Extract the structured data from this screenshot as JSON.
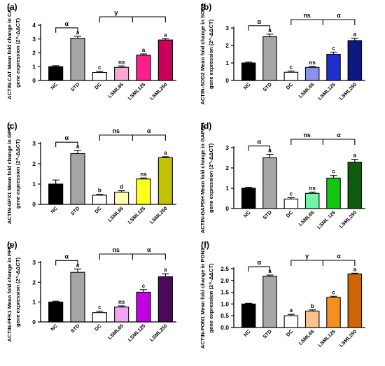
{
  "chart_data": [
    {
      "type": "bar",
      "panel_label": "(a)",
      "ylabel_lines": [
        "ACTIN-CAT Mean fold change in CAT",
        "gene expression (2^-ΔΔCT)"
      ],
      "ylim": [
        0,
        4
      ],
      "yticks": [
        0,
        1,
        2,
        3,
        4
      ],
      "categories": [
        "NC",
        "STD",
        "DC",
        "LSML65",
        "LSML125",
        "LSML250"
      ],
      "values": [
        1.0,
        3.05,
        0.58,
        0.95,
        1.83,
        2.93
      ],
      "errors": [
        0.07,
        0.15,
        0.07,
        0.1,
        0.09,
        0.09
      ],
      "colors": [
        "#000000",
        "#a6a6a6",
        "#ffffff",
        "#f7a8d0",
        "#ff1f8a",
        "#cc0058"
      ],
      "bar_labels": [
        "",
        "a",
        "c",
        "ns",
        "a",
        "a"
      ],
      "brackets": [
        {
          "from": 0,
          "to": 1,
          "label": "α"
        },
        {
          "from": 2,
          "to": 5,
          "mid": 4,
          "label": "γ",
          "label_at": "left"
        }
      ]
    },
    {
      "type": "bar",
      "panel_label": "(b)",
      "ylabel_lines": [
        "ACTIN-SOD2 Mean fold change in SOD2",
        "gene expression (2^-ΔΔCT)"
      ],
      "ylim": [
        0,
        3
      ],
      "yticks": [
        0,
        1,
        2,
        3
      ],
      "categories": [
        "NC",
        "STD",
        "DC",
        "LSML65",
        "LSML125",
        "LSML250"
      ],
      "values": [
        1.0,
        2.5,
        0.47,
        0.75,
        1.5,
        2.28
      ],
      "errors": [
        0.05,
        0.15,
        0.07,
        0.06,
        0.12,
        0.14
      ],
      "colors": [
        "#000000",
        "#a6a6a6",
        "#ffffff",
        "#8b93e8",
        "#1f2fd0",
        "#0d1880"
      ],
      "bar_labels": [
        "",
        "a",
        "c",
        "ns",
        "c",
        "a"
      ],
      "brackets": [
        {
          "from": 0,
          "to": 1,
          "label": "α"
        },
        {
          "from": 2,
          "to": 5,
          "mid": 4,
          "label": "ns",
          "label2": "α"
        }
      ]
    },
    {
      "type": "bar",
      "panel_label": "(c)",
      "ylabel_lines": [
        "ACTIN-GPX1 Mean fold change in GPX1",
        "gene expression (2^-ΔΔCT)"
      ],
      "ylim": [
        0,
        3
      ],
      "yticks": [
        0,
        1,
        2,
        3
      ],
      "categories": [
        "NC",
        "STD",
        "DC",
        "LSML65",
        "LSML125",
        "LSML250"
      ],
      "values": [
        1.0,
        2.5,
        0.45,
        0.6,
        1.25,
        2.3
      ],
      "errors": [
        0.2,
        0.15,
        0.05,
        0.07,
        0.05,
        0.05
      ],
      "colors": [
        "#000000",
        "#a6a6a6",
        "#ffffff",
        "#ffffb0",
        "#ffff1a",
        "#c2c200"
      ],
      "bar_labels": [
        "",
        "a",
        "b",
        "d",
        "ns",
        "a"
      ],
      "brackets": [
        {
          "from": 0,
          "to": 1,
          "label": "α"
        },
        {
          "from": 2,
          "to": 5,
          "mid": 4,
          "label": "ns",
          "label2": "α"
        }
      ]
    },
    {
      "type": "bar",
      "panel_label": "(d)",
      "ylabel_lines": [
        "ACTIN-GAPDH Mean fold change in GAPDH",
        "gene expression (2^-ΔΔCT)"
      ],
      "ylim": [
        0,
        3
      ],
      "yticks": [
        0,
        1,
        2,
        3
      ],
      "categories": [
        "NC",
        "STD",
        "DC",
        "LSML65",
        "LSML 125",
        "LSML250"
      ],
      "values": [
        1.0,
        2.5,
        0.47,
        0.75,
        1.5,
        2.28
      ],
      "errors": [
        0.05,
        0.17,
        0.07,
        0.06,
        0.13,
        0.15
      ],
      "colors": [
        "#000000",
        "#a6a6a6",
        "#ffffff",
        "#74f5a6",
        "#10c810",
        "#0d5c0d"
      ],
      "bar_labels": [
        "",
        "a",
        "c",
        "ns",
        "c",
        "a"
      ],
      "brackets": [
        {
          "from": 0,
          "to": 1,
          "label": "α"
        },
        {
          "from": 2,
          "to": 5,
          "mid": 4,
          "label": "ns",
          "label2": "α"
        }
      ]
    },
    {
      "type": "bar",
      "panel_label": "(e)",
      "ylabel_lines": [
        "ACTIN-PFK1 Mean fold change in PFK1",
        "gene expression (2^-ΔΔCT)"
      ],
      "ylim": [
        0,
        3
      ],
      "yticks": [
        0,
        1,
        2,
        3
      ],
      "categories": [
        "NC",
        "STD",
        "DC",
        "LSML65",
        "LSML125",
        "LSML250"
      ],
      "values": [
        1.0,
        2.5,
        0.47,
        0.75,
        1.5,
        2.28
      ],
      "errors": [
        0.05,
        0.17,
        0.07,
        0.06,
        0.13,
        0.15
      ],
      "colors": [
        "#000000",
        "#a6a6a6",
        "#ffffff",
        "#f5a3f5",
        "#c000e0",
        "#4d0a5a"
      ],
      "bar_labels": [
        "",
        "a",
        "c",
        "ns",
        "c",
        "a"
      ],
      "brackets": [
        {
          "from": 0,
          "to": 1,
          "label": "α"
        },
        {
          "from": 2,
          "to": 5,
          "mid": 4,
          "label": "ns",
          "label2": "α"
        }
      ]
    },
    {
      "type": "bar",
      "panel_label": "(f)",
      "ylabel_lines": [
        "ACTIN-PON1 Mean fold change in PON1",
        "gene expression (2^-ΔΔCT)"
      ],
      "ylim": [
        0,
        2.5
      ],
      "yticks": [
        0.0,
        0.5,
        1.0,
        1.5,
        2.0,
        2.5
      ],
      "ytick_format": 1,
      "categories": [
        "NC",
        "STD",
        "DC",
        "LSML65",
        "LSML125",
        "LSML250"
      ],
      "values": [
        1.0,
        2.18,
        0.5,
        0.7,
        1.28,
        2.28
      ],
      "errors": [
        0.03,
        0.05,
        0.06,
        0.05,
        0.05,
        0.03
      ],
      "colors": [
        "#000000",
        "#a6a6a6",
        "#ffffff",
        "#f7c38a",
        "#f5901e",
        "#cc6600"
      ],
      "bar_labels": [
        "",
        "a",
        "a",
        "b",
        "c",
        "a"
      ],
      "brackets": [
        {
          "from": 0,
          "to": 1,
          "label": "α"
        },
        {
          "from": 2,
          "to": 5,
          "mid": 4,
          "label": "γ",
          "label2": "α"
        }
      ]
    }
  ]
}
